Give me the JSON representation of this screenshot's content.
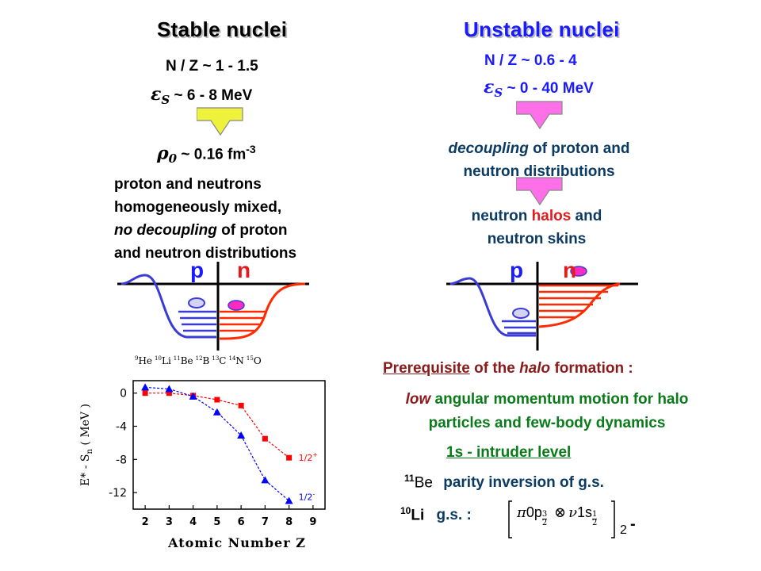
{
  "left": {
    "title": "Stable nuclei",
    "nz": "N / Z ~ 1 - 1.5",
    "es_sym": "ε",
    "es_sub": "S",
    "es_val": " ~ 6 - 8 MeV",
    "rho_sym": "ρ",
    "rho_sub": "0",
    "rho_val": " ~ 0.16 fm",
    "rho_exp": "-3",
    "desc": [
      "proton and neutrons",
      "homogeneously mixed,"
    ],
    "desc3_italic": "no decoupling",
    "desc3_rest": " of proton",
    "desc4": "and neutron distributions",
    "p_label": "p",
    "n_label": "n"
  },
  "right": {
    "title": "Unstable nuclei",
    "nz": "N / Z ~ 0.6 - 4",
    "es_sym": "ε",
    "es_sub": "S",
    "es_val": " ~ 0 - 40 MeV",
    "dec_italic": "decoupling",
    "dec_rest": " of proton and",
    "dec_line2": "neutron distributions",
    "halo_pre": "neutron ",
    "halo_word": "halos",
    "halo_post": " and",
    "halo_line2": "neutron skins",
    "p_label": "p",
    "n_label": "n"
  },
  "prereq": {
    "underlined": "Prerequisite",
    "mid": " of the ",
    "halo": "halo",
    "end": " formation :"
  },
  "condition": {
    "low": "low",
    "mid1": " angular momentum",
    "mid2": " motion for halo",
    "line2": "particles and few-body dynamics"
  },
  "intruder": "1s - intruder level",
  "be11": {
    "mass": "11",
    "el": "Be",
    "text": "parity inversion of g.s."
  },
  "li10": {
    "mass": "10",
    "el": "Li",
    "text": "g.s. :",
    "pi": "π",
    "orb1": "0p",
    "orb1_sub": "3",
    "orb1_den": "2",
    "otimes": "⊗",
    "nu": "ν",
    "orb2": "1s",
    "orb2_sub": "1",
    "orb2_den": "2",
    "outer_sub": "2",
    "outer_sup": "-"
  },
  "colors": {
    "proton_blue": "#3b3bd6",
    "neutron_red": "#ff2a00",
    "arrow_yellow": "#eef23a",
    "arrow_magenta": "#ff6fe8",
    "text_blue": "#1a1aff",
    "navy": "#0b3a63",
    "halo_red": "#e41a1c",
    "green": "#0a7a1a",
    "maroon": "#8b1a1a"
  },
  "chart_data": {
    "type": "line",
    "xlabel": "Atomic Number Z",
    "ylabel": "E* - S",
    "ylabel_sub": "n",
    "ylabel_unit": " ( MeV )",
    "xlim": [
      1.5,
      9.5
    ],
    "ylim": [
      -14,
      1.5
    ],
    "xticks": [
      2,
      3,
      4,
      5,
      6,
      7,
      8,
      9
    ],
    "yticks": [
      0,
      -4,
      -8,
      -12
    ],
    "top_labels": [
      {
        "mass": "9",
        "el": "He"
      },
      {
        "mass": "10",
        "el": "Li"
      },
      {
        "mass": "11",
        "el": "Be"
      },
      {
        "mass": "12",
        "el": "B"
      },
      {
        "mass": "13",
        "el": "C"
      },
      {
        "mass": "14",
        "el": "N"
      },
      {
        "mass": "15",
        "el": "O"
      }
    ],
    "series": [
      {
        "name": "1/2+",
        "label_main": "1/2",
        "label_sup": "+",
        "color": "#ff0000",
        "marker": "square",
        "x": [
          2,
          3,
          4,
          5,
          6,
          7,
          8
        ],
        "y": [
          0,
          0,
          -0.3,
          -0.8,
          -1.5,
          -5.5,
          -7.8
        ]
      },
      {
        "name": "1/2-",
        "label_main": "1/2",
        "label_sup": "-",
        "color": "#0000ff",
        "marker": "triangle",
        "x": [
          2,
          3,
          4,
          5,
          6,
          7,
          8
        ],
        "y": [
          0.7,
          0.5,
          -0.4,
          -2.3,
          -5.1,
          -10.5,
          -13
        ]
      }
    ]
  }
}
